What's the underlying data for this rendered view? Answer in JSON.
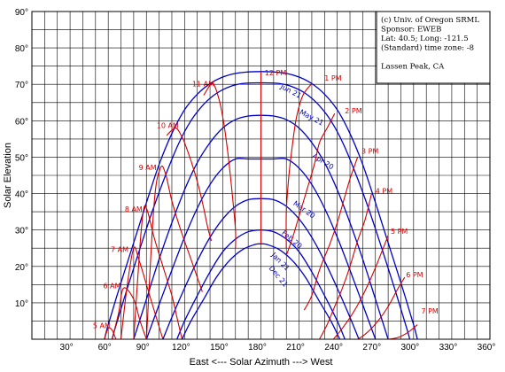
{
  "chart_data": {
    "type": "line",
    "xlabel": "East <--- Solar Azimuth ---> West",
    "ylabel": "Solar Elevation",
    "xlim": [
      0,
      360
    ],
    "ylim": [
      0,
      90
    ],
    "x_ticks": [
      30,
      60,
      90,
      120,
      150,
      180,
      210,
      240,
      270,
      300,
      330,
      360
    ],
    "y_ticks": [
      10,
      20,
      30,
      40,
      50,
      60,
      70,
      80,
      90
    ],
    "x_tick_labels": [
      "30°",
      "60°",
      "90°",
      "120°",
      "150°",
      "180°",
      "210°",
      "240°",
      "270°",
      "300°",
      "330°",
      "360°"
    ],
    "y_tick_labels": [
      "10°",
      "20°",
      "30°",
      "40°",
      "50°",
      "60°",
      "70°",
      "80°",
      "90°"
    ],
    "grid": true,
    "info_box": [
      "(c) Univ. of Oregon SRML",
      "Sponsor: EWEB",
      "Lat: 40.5; Long: -121.5",
      "(Standard) time zone: -8",
      "",
      "Lassen Peak, CA"
    ],
    "colors": {
      "sun_path": "#0000c8",
      "hour_line": "#d40000",
      "grid": "#000000"
    },
    "sun_paths": [
      {
        "label": "Jun 21",
        "label_at": [
          195,
          69
        ],
        "label_angle": 28,
        "x": [
          57,
          60,
          70,
          80,
          90,
          100,
          110,
          120,
          130,
          140,
          150,
          160,
          170,
          180,
          190,
          200,
          210,
          220,
          230,
          240,
          250,
          260,
          270,
          280,
          290,
          300,
          303
        ],
        "y": [
          0,
          4,
          15.5,
          26.5,
          37.5,
          48,
          56.5,
          63,
          67.3,
          70.2,
          72,
          73,
          73.4,
          73.5,
          73.4,
          73,
          72,
          70.2,
          67.3,
          63,
          56.5,
          48,
          37.5,
          26.5,
          15.5,
          4,
          0
        ]
      },
      {
        "label": "May 21",
        "label_at": [
          210,
          62
        ],
        "label_angle": 28,
        "x": [
          63,
          65,
          75,
          85,
          95,
          105,
          115,
          125,
          135,
          145,
          155,
          165,
          175,
          180,
          185,
          195,
          205,
          215,
          225,
          235,
          245,
          255,
          265,
          275,
          285,
          295,
          297
        ],
        "y": [
          0,
          2.5,
          14,
          25,
          35.5,
          45,
          53.5,
          60,
          64.5,
          67.5,
          69.3,
          70.2,
          70.4,
          70.4,
          70.4,
          70.2,
          69.3,
          67.5,
          64.5,
          60,
          53.5,
          45,
          35.5,
          25,
          14,
          2.5,
          0
        ]
      },
      {
        "label": "Apr 20",
        "label_at": [
          220,
          50
        ],
        "label_angle": 32,
        "x": [
          80,
          90,
          100,
          110,
          120,
          130,
          140,
          150,
          160,
          170,
          180,
          190,
          200,
          210,
          220,
          230,
          240,
          250,
          260,
          270,
          280
        ],
        "y": [
          0,
          11,
          22,
          32,
          41,
          48.5,
          54,
          58,
          60.3,
          61.3,
          61.5,
          61.3,
          60.3,
          58,
          54,
          48.5,
          41,
          32,
          22,
          11,
          0
        ]
      },
      {
        "label": "Mar 20",
        "label_at": [
          205,
          37
        ],
        "label_angle": 35,
        "x": [
          90,
          100,
          110,
          120,
          130,
          140,
          150,
          160,
          170,
          180,
          190,
          200,
          210,
          220,
          230,
          240,
          250,
          260,
          270
        ],
        "y": [
          0,
          9.5,
          19,
          28,
          36,
          42.5,
          47,
          49.5,
          49.5,
          49.5,
          49.5,
          49.5,
          47,
          42.5,
          36,
          28,
          19,
          9.5,
          0
        ]
      },
      {
        "label": "Feb 20",
        "label_at": [
          196,
          29
        ],
        "label_angle": 40,
        "x": [
          103,
          110,
          120,
          130,
          140,
          150,
          160,
          170,
          180,
          190,
          200,
          210,
          220,
          230,
          240,
          250,
          257
        ],
        "y": [
          0,
          6,
          14,
          21.5,
          28,
          33,
          36.5,
          38.3,
          38.6,
          38.3,
          36.5,
          33,
          28,
          21.5,
          14,
          6,
          0
        ]
      },
      {
        "label": "Jan 21",
        "label_at": [
          188,
          23
        ],
        "label_angle": 45,
        "x": [
          114,
          120,
          130,
          140,
          150,
          160,
          170,
          180,
          190,
          200,
          210,
          220,
          230,
          240,
          246
        ],
        "y": [
          0,
          5,
          12,
          18.5,
          24,
          27.5,
          29.5,
          30,
          29.5,
          27.5,
          24,
          18.5,
          12,
          5,
          0
        ]
      },
      {
        "label": "Dec 21",
        "label_at": [
          186,
          19.5
        ],
        "label_angle": 50,
        "x": [
          118,
          125,
          135,
          145,
          155,
          165,
          175,
          180,
          185,
          195,
          205,
          215,
          225,
          235,
          242
        ],
        "y": [
          0,
          5,
          11,
          17,
          21.5,
          24.5,
          26,
          26.2,
          26,
          24.5,
          21.5,
          17,
          11,
          5,
          0
        ]
      }
    ],
    "hour_lines": [
      {
        "label": "5 AM",
        "label_at": [
          48,
          3
        ],
        "x": [
          57,
          60,
          63,
          66
        ],
        "y": [
          0,
          3,
          2.5,
          0
        ]
      },
      {
        "label": "6 AM",
        "label_at": [
          56,
          14
        ],
        "x": [
          63,
          68,
          72,
          80,
          85,
          90
        ],
        "y": [
          0,
          7,
          14,
          11,
          5,
          0
        ]
      },
      {
        "label": "7 AM",
        "label_at": [
          62,
          24
        ],
        "x": [
          70,
          75,
          80,
          84,
          90,
          96,
          103
        ],
        "y": [
          0,
          15,
          25,
          22,
          15,
          8,
          0
        ]
      },
      {
        "label": "8 AM",
        "label_at": [
          73,
          35
        ],
        "x": [
          80,
          85,
          88,
          91,
          96,
          103,
          110,
          114,
          118
        ],
        "y": [
          0,
          26,
          36,
          35,
          28,
          20,
          12,
          6,
          0
        ]
      },
      {
        "label": "9 AM",
        "label_at": [
          84,
          46.5
        ],
        "x": [
          90,
          96,
          101,
          105,
          110,
          117,
          125,
          131,
          134
        ],
        "y": [
          0,
          37,
          47,
          45.5,
          38,
          30,
          22,
          16,
          13
        ]
      },
      {
        "label": "10 AM",
        "label_at": [
          98,
          58
        ],
        "x": [
          106,
          113,
          118,
          121,
          126,
          131,
          135,
          138,
          141
        ],
        "y": [
          56,
          58,
          55.5,
          53,
          48,
          42,
          36,
          31,
          27
        ]
      },
      {
        "label": "11 AM",
        "label_at": [
          126,
          69.5
        ],
        "x": [
          135,
          142,
          147,
          150,
          153,
          156,
          158,
          160,
          160
        ],
        "y": [
          67,
          70.2,
          66,
          61,
          54,
          45,
          38,
          30,
          25
        ]
      },
      {
        "label": "12 PM",
        "label_at": [
          183,
          72.5
        ],
        "x": [
          180,
          180,
          180,
          180,
          180,
          180,
          180
        ],
        "y": [
          73.5,
          70.4,
          61.5,
          49.5,
          38.6,
          30,
          26.2
        ]
      },
      {
        "label": "1 PM",
        "label_at": [
          230,
          71
        ],
        "x": [
          220,
          213,
          208,
          205,
          202,
          200,
          200
        ],
        "y": [
          70.2,
          67,
          61,
          54,
          45,
          35,
          25
        ]
      },
      {
        "label": "2 PM",
        "label_at": [
          246,
          62
        ],
        "x": [
          238,
          232,
          226,
          222,
          217,
          211,
          205,
          200
        ],
        "y": [
          62,
          58,
          54,
          48,
          42,
          35,
          28,
          23
        ]
      },
      {
        "label": "3 PM",
        "label_at": [
          259,
          51
        ],
        "x": [
          256,
          250,
          245,
          240,
          234,
          226,
          220,
          214
        ],
        "y": [
          50,
          44,
          38,
          32,
          26,
          19,
          12,
          8
        ]
      },
      {
        "label": "4 PM",
        "label_at": [
          270,
          40
        ],
        "x": [
          267,
          262,
          256,
          250,
          244,
          238,
          232,
          226
        ],
        "y": [
          40,
          33,
          27,
          20,
          14,
          9,
          4,
          0
        ]
      },
      {
        "label": "5 PM",
        "label_at": [
          282,
          29
        ],
        "x": [
          280,
          275,
          268,
          260,
          252,
          244,
          237
        ],
        "y": [
          28.5,
          24,
          18,
          12,
          7,
          3,
          0
        ]
      },
      {
        "label": "6 PM",
        "label_at": [
          294,
          17
        ],
        "x": [
          293,
          287,
          280,
          272,
          264,
          256,
          252
        ],
        "y": [
          17,
          13.5,
          9,
          5,
          2,
          0,
          0
        ]
      },
      {
        "label": "7 PM",
        "label_at": [
          306,
          7
        ],
        "x": [
          303,
          296,
          288,
          280,
          276
        ],
        "y": [
          4,
          2,
          0.5,
          0,
          0
        ]
      }
    ]
  }
}
